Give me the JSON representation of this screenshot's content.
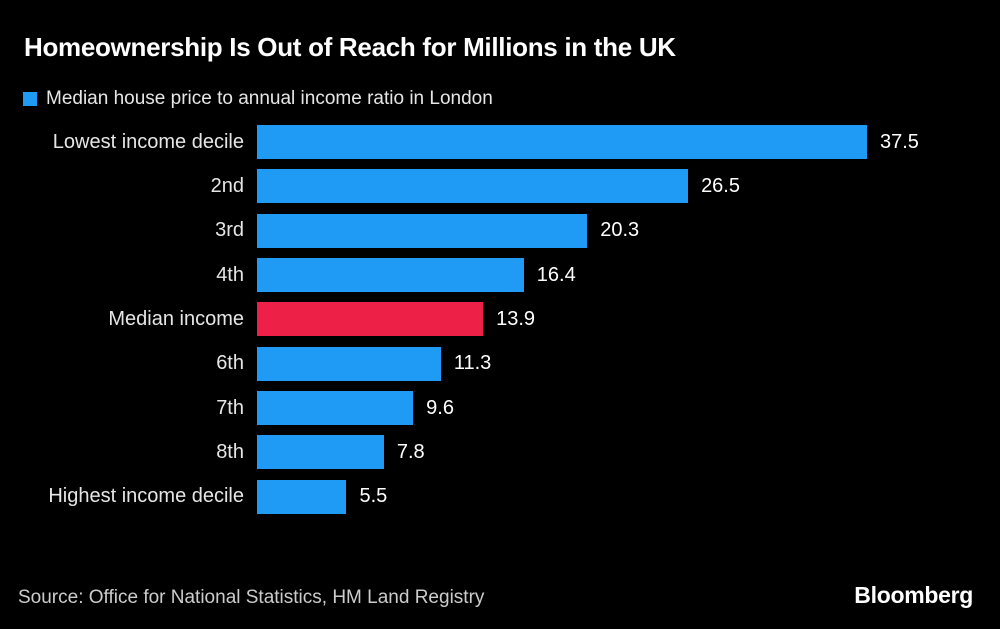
{
  "header": {
    "title": "Homeownership Is Out of Reach for Millions in the UK",
    "legend_label": "Median house price to annual income ratio in London"
  },
  "footer": {
    "source": "Source: Office for National Statistics, HM Land Registry",
    "brand": "Bloomberg"
  },
  "colors": {
    "background": "#000000",
    "bar_blue": "#1f9bf5",
    "bar_red": "#ed2048",
    "title_text": "#ffffff",
    "label_text": "#e6e6e6",
    "source_text": "#cccccc"
  },
  "chart_data": {
    "type": "bar",
    "orientation": "horizontal",
    "title": "Homeownership Is Out of Reach for Millions in the UK",
    "legend": [
      "Median house price to annual income ratio in London"
    ],
    "legend_position": "top-left",
    "grid": false,
    "axes_shown": false,
    "xlim": [
      0,
      40
    ],
    "categories": [
      "Lowest income decile",
      "2nd",
      "3rd",
      "4th",
      "Median income",
      "6th",
      "7th",
      "8th",
      "Highest income decile"
    ],
    "values": [
      37.5,
      26.5,
      20.3,
      16.4,
      13.9,
      11.3,
      9.6,
      7.8,
      5.5
    ],
    "value_labels": [
      "37.5",
      "26.5",
      "20.3",
      "16.4",
      "13.9",
      "11.3",
      "9.6",
      "7.8",
      "5.5"
    ],
    "highlight_category": "Median income",
    "highlight_color": "#ed2048",
    "bar_color": "#1f9bf5"
  }
}
